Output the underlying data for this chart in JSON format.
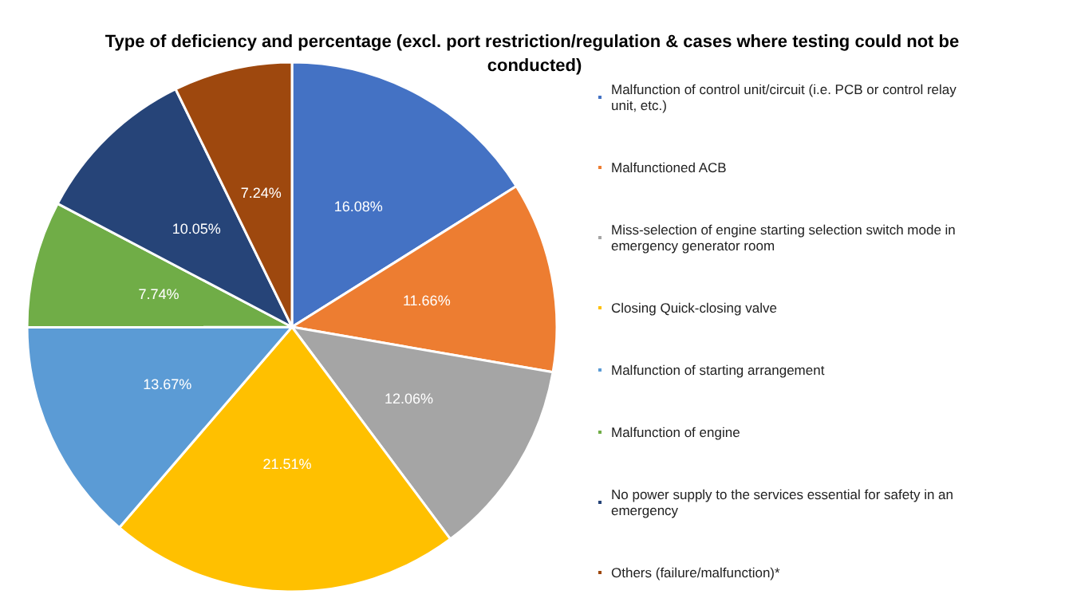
{
  "chart_data": {
    "type": "pie",
    "title": "Type of deficiency and percentage (excl. port restriction/regulation & cases where testing could not be conducted)",
    "categories": [
      "Malfunction of control unit/circuit (i.e. PCB or control relay unit, etc.)",
      "Malfunctioned ACB",
      "Miss-selection of engine starting selection switch mode in emergency generator room",
      "Closing Quick-closing valve",
      "Malfunction of starting arrangement",
      "Malfunction of engine",
      "No power supply to the services essential for safety in an emergency",
      "Others (failure/malfunction)*"
    ],
    "values": [
      16.08,
      11.66,
      12.06,
      21.51,
      13.67,
      7.74,
      10.05,
      7.24
    ],
    "value_labels": [
      "16.08%",
      "11.66%",
      "12.06%",
      "21.51%",
      "13.67%",
      "7.74%",
      "10.05%",
      "7.24%"
    ],
    "colors": [
      "#4472c4",
      "#ed7d31",
      "#a5a5a5",
      "#ffc000",
      "#5b9bd5",
      "#70ad47",
      "#264478",
      "#9e480e"
    ],
    "legend": "right"
  }
}
